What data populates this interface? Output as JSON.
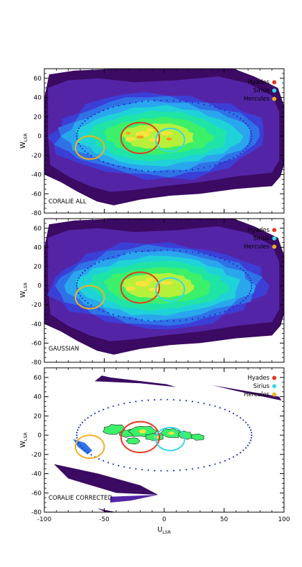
{
  "chart_data": [
    {
      "type": "heatmap",
      "panel_label": "CORALIE ALL",
      "x_range": [
        -100,
        100
      ],
      "y_range": [
        -80,
        70
      ],
      "x_ticks": [
        "-100",
        "-50",
        "0",
        "50",
        "100"
      ],
      "y_ticks": [
        "60",
        "40",
        "20",
        "0",
        "-20",
        "-40",
        "-60",
        "-80"
      ],
      "ylabel": "W",
      "ylabel_sub": "LSR",
      "xlabel": "",
      "xlabel_sub": "",
      "legend_position": "top-right",
      "legend": [
        {
          "name": "Hyades",
          "color": "#e8341c"
        },
        {
          "name": "Sirius",
          "color": "#36d8ea"
        },
        {
          "name": "Hercules",
          "color": "#f3b01c"
        }
      ],
      "circles": [
        {
          "name": "Hyades",
          "center": [
            -20,
            -2
          ],
          "radius": 16,
          "color": "#e8341c"
        },
        {
          "name": "Sirius",
          "center": [
            5,
            -4
          ],
          "radius": 12,
          "color": "#36d8ea"
        },
        {
          "name": "Hercules",
          "center": [
            -62,
            -12
          ],
          "radius": 12,
          "color": "#f3b01c"
        }
      ],
      "ellipse": {
        "center": [
          0,
          0
        ],
        "semi_axes": [
          73,
          37
        ],
        "style": "dotted",
        "color": "#1e2fc8"
      },
      "density": "full"
    },
    {
      "type": "heatmap",
      "panel_label": "GAUSSIAN",
      "x_range": [
        -100,
        100
      ],
      "y_range": [
        -80,
        70
      ],
      "x_ticks": [
        "-100",
        "-50",
        "0",
        "50",
        "100"
      ],
      "y_ticks": [
        "60",
        "40",
        "20",
        "0",
        "-20",
        "-40",
        "-60",
        "-80"
      ],
      "ylabel": "W",
      "ylabel_sub": "LSR",
      "xlabel": "",
      "xlabel_sub": "",
      "legend_position": "top-right",
      "legend": [
        {
          "name": "Hyades",
          "color": "#e8341c"
        },
        {
          "name": "Sirius",
          "color": "#36d8ea"
        },
        {
          "name": "Hercules",
          "color": "#f3b01c"
        }
      ],
      "circles": [
        {
          "name": "Hyades",
          "center": [
            -20,
            -2
          ],
          "radius": 16,
          "color": "#e8341c"
        },
        {
          "name": "Sirius",
          "center": [
            5,
            -4
          ],
          "radius": 12,
          "color": "#36d8ea"
        },
        {
          "name": "Hercules",
          "center": [
            -62,
            -12
          ],
          "radius": 12,
          "color": "#f3b01c"
        }
      ],
      "ellipse": {
        "center": [
          0,
          0
        ],
        "semi_axes": [
          73,
          37
        ],
        "style": "dotted",
        "color": "#1e2fc8"
      },
      "density": "full"
    },
    {
      "type": "heatmap",
      "panel_label": "CORALIE CORRECTED",
      "x_range": [
        -100,
        100
      ],
      "y_range": [
        -80,
        70
      ],
      "x_ticks": [
        "-100",
        "-50",
        "0",
        "50",
        "100"
      ],
      "y_ticks": [
        "60",
        "40",
        "20",
        "0",
        "-20",
        "-40",
        "-60",
        "-80"
      ],
      "ylabel": "W",
      "ylabel_sub": "LSR",
      "xlabel": "U",
      "xlabel_sub": "LSR",
      "legend_position": "top-right",
      "legend": [
        {
          "name": "Hyades",
          "color": "#e8341c"
        },
        {
          "name": "Sirius",
          "color": "#36d8ea"
        },
        {
          "name": "Hercules",
          "color": "#f3b01c"
        }
      ],
      "circles": [
        {
          "name": "Hyades",
          "center": [
            -20,
            -2
          ],
          "radius": 16,
          "color": "#e8341c"
        },
        {
          "name": "Sirius",
          "center": [
            5,
            -4
          ],
          "radius": 12,
          "color": "#36d8ea"
        },
        {
          "name": "Hercules",
          "center": [
            -62,
            -12
          ],
          "radius": 12,
          "color": "#f3b01c"
        }
      ],
      "ellipse": {
        "center": [
          0,
          0
        ],
        "semi_axes": [
          73,
          37
        ],
        "style": "dotted",
        "color": "#1e2fc8"
      },
      "density": "residual"
    }
  ],
  "palette": {
    "dark_purple": "#3b0a62",
    "purple": "#5424a6",
    "royal_blue": "#3b3fd6",
    "blue": "#2f72e6",
    "sky_blue": "#2aa6ee",
    "cyan": "#1fd2d8",
    "aqua_green": "#20e4a6",
    "green": "#3cf06a",
    "yellow_green": "#b6f03a",
    "yellow": "#ffe23c",
    "orange": "#ff9a1c"
  }
}
